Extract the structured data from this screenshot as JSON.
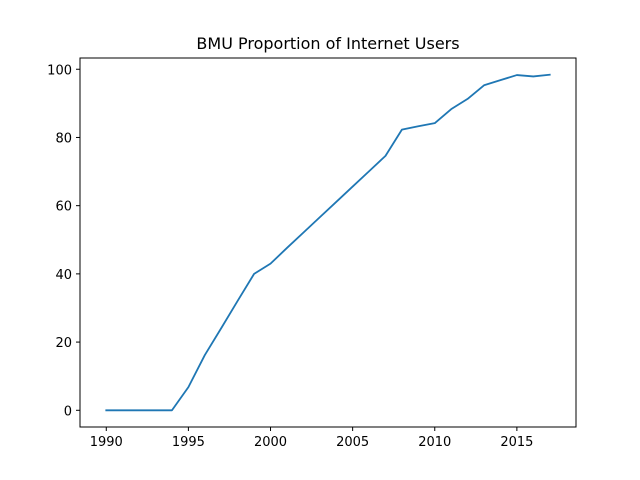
{
  "chart_data": {
    "type": "line",
    "title": "BMU Proportion of Internet Users",
    "xlabel": "",
    "ylabel": "",
    "xlim": [
      1988.4,
      2018.6
    ],
    "ylim": [
      -4.9,
      103.3
    ],
    "x_ticks": [
      1990,
      1995,
      2000,
      2005,
      2010,
      2015
    ],
    "y_ticks": [
      0,
      20,
      40,
      60,
      80,
      100
    ],
    "grid": false,
    "series": [
      {
        "color": "#1f77b4",
        "x": [
          1990,
          1991,
          1992,
          1993,
          1994,
          1995,
          1996,
          1997,
          1998,
          1999,
          2000,
          2001,
          2002,
          2003,
          2004,
          2005,
          2006,
          2007,
          2008,
          2009,
          2010,
          2011,
          2012,
          2013,
          2014,
          2015,
          2016,
          2017
        ],
        "y": [
          0,
          0,
          0,
          0,
          0,
          6.8,
          16.2,
          24.1,
          32.1,
          40.0,
          43.0,
          47.6,
          52.1,
          56.6,
          61.1,
          65.6,
          70.1,
          74.6,
          82.3,
          83.3,
          84.2,
          88.3,
          91.3,
          95.3,
          96.8,
          98.3,
          97.9,
          98.4
        ]
      }
    ]
  }
}
